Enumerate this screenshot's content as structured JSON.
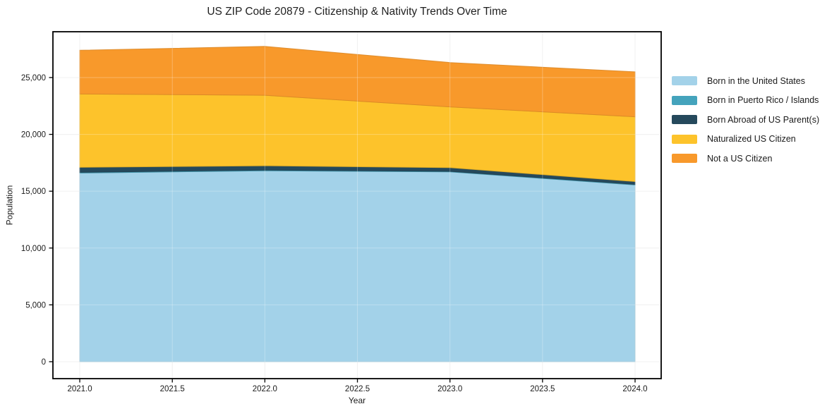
{
  "chart_data": {
    "type": "area",
    "stacked": true,
    "title": "US ZIP Code 20879 - Citizenship & Nativity Trends Over Time",
    "xlabel": "Year",
    "ylabel": "Population",
    "x": [
      2021,
      2022,
      2023,
      2024
    ],
    "series": [
      {
        "name": "Born in the United States",
        "color": "#A3D2E9",
        "values": [
          16600,
          16800,
          16700,
          15550
        ]
      },
      {
        "name": "Born in Puerto Rico / Islands",
        "color": "#44A3BC",
        "values": [
          60,
          60,
          50,
          50
        ]
      },
      {
        "name": "Born Abroad of US Parent(s)",
        "color": "#25495C",
        "values": [
          440,
          380,
          320,
          250
        ]
      },
      {
        "name": "Naturalized US Citizen",
        "color": "#FDC32B",
        "values": [
          6450,
          6200,
          5350,
          5700
        ]
      },
      {
        "name": "Not a US Citizen",
        "color": "#F8992B",
        "values": [
          3850,
          4300,
          3900,
          3950
        ]
      }
    ],
    "totals": [
      27400,
      27740,
      26320,
      25500
    ],
    "x_ticks": {
      "values": [
        2021.0,
        2021.5,
        2022.0,
        2022.5,
        2023.0,
        2023.5,
        2024.0
      ],
      "labels": [
        "2021.0",
        "2021.5",
        "2022.0",
        "2022.5",
        "2023.0",
        "2023.5",
        "2024.0"
      ]
    },
    "y_ticks": {
      "values": [
        0,
        5000,
        10000,
        15000,
        20000,
        25000
      ],
      "labels": [
        "0",
        "5,000",
        "10,000",
        "15,000",
        "20,000",
        "25,000"
      ]
    },
    "xlim": [
      2020.855,
      2024.141
    ],
    "ylim": [
      -1490,
      29030
    ],
    "grid": true,
    "legend_position": "right-outside",
    "colors": {
      "axis": "#000000",
      "grid": "#ececec",
      "text": "#1a1a1a",
      "background": "#ffffff"
    }
  }
}
